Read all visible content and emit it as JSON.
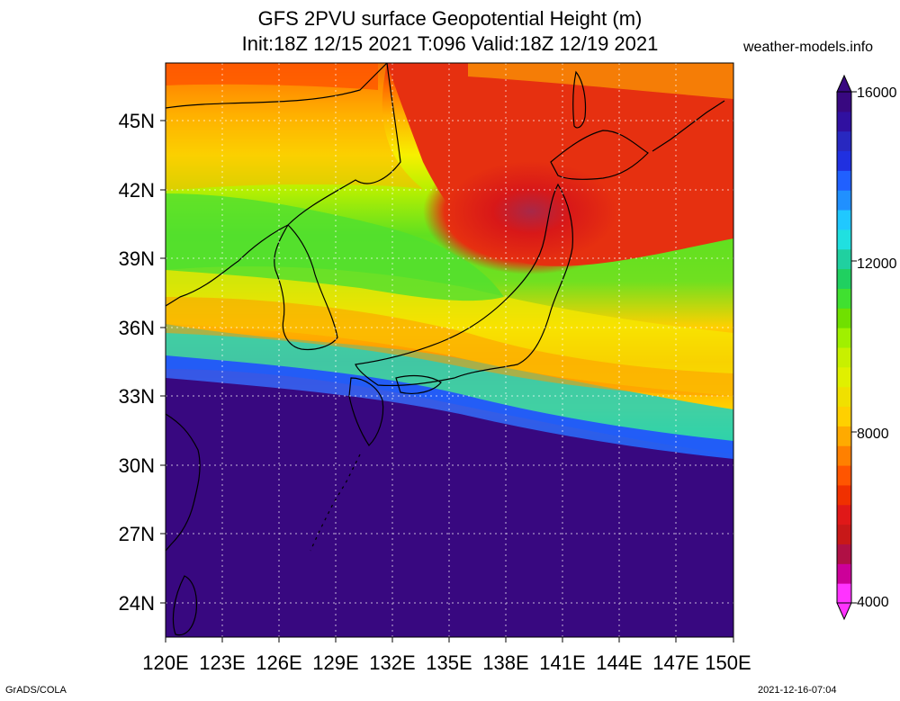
{
  "title": {
    "line1": "GFS 2PVU surface Geopotential Height (m)",
    "line2": "Init:18Z 12/15 2021 T:096 Valid:18Z 12/19 2021"
  },
  "site_label": "weather-models.info",
  "footer": {
    "left": "GrADS/COLA",
    "right": "2021-12-16-07:04"
  },
  "map": {
    "x_ticks": [
      "120E",
      "123E",
      "126E",
      "129E",
      "132E",
      "135E",
      "138E",
      "141E",
      "144E",
      "147E",
      "150E"
    ],
    "y_ticks": [
      "45N",
      "42N",
      "39N",
      "36N",
      "33N",
      "30N",
      "27N",
      "24N"
    ],
    "lon_range": [
      120,
      150
    ],
    "lat_range": [
      22.5,
      47.5
    ]
  },
  "colorbar": {
    "labels": [
      "16000",
      "12000",
      "8000",
      "4000"
    ],
    "colors": [
      "#ff33ff",
      "#cc0099",
      "#b01045",
      "#c81818",
      "#e01818",
      "#f03000",
      "#ff5500",
      "#ff8000",
      "#ffaa00",
      "#ffd000",
      "#f0e000",
      "#e0f000",
      "#c8f000",
      "#a0f000",
      "#70e000",
      "#40e030",
      "#20d060",
      "#20d0a0",
      "#20e0e0",
      "#20c8ff",
      "#2090ff",
      "#2060ff",
      "#2030e0",
      "#2828c0",
      "#3010a0",
      "#380880"
    ]
  }
}
